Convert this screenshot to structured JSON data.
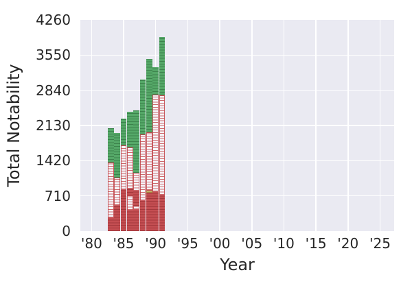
{
  "chart_data": {
    "type": "bar",
    "stacked": true,
    "title": "",
    "xlabel": "Year",
    "ylabel": "Total Notability",
    "grid": true,
    "legend": "none",
    "background": "#eaeaf2",
    "xlim": [
      1978.25,
      2027.2
    ],
    "ylim": [
      0,
      4260
    ],
    "y_ticks": [
      0,
      710,
      1420,
      2130,
      2840,
      3550,
      4260
    ],
    "x_ticks": [
      {
        "year": 1980,
        "label": "'80"
      },
      {
        "year": 1985,
        "label": "'85"
      },
      {
        "year": 1990,
        "label": "'90"
      },
      {
        "year": 1995,
        "label": "'95"
      },
      {
        "year": 2000,
        "label": "'00"
      },
      {
        "year": 2005,
        "label": "'05"
      },
      {
        "year": 2010,
        "label": "'10"
      },
      {
        "year": 2015,
        "label": "'15"
      },
      {
        "year": 2020,
        "label": "'20"
      },
      {
        "year": 2025,
        "label": "'25"
      }
    ],
    "colors": {
      "red": "#c44e52",
      "white": "#f6f5fa",
      "green": "#55a868",
      "yellow": "#ccb974"
    },
    "bars": [
      {
        "year": 1983,
        "total": 2070,
        "segments": [
          {
            "color": "red",
            "from": 0,
            "to": 260
          },
          {
            "color": "white",
            "from": 260,
            "to": 1390
          },
          {
            "color": "green",
            "from": 1390,
            "to": 2070
          }
        ]
      },
      {
        "year": 1984,
        "total": 1980,
        "segments": [
          {
            "color": "red",
            "from": 0,
            "to": 510
          },
          {
            "color": "white",
            "from": 510,
            "to": 1075
          },
          {
            "color": "green",
            "from": 1075,
            "to": 1980
          }
        ]
      },
      {
        "year": 1985,
        "total": 2270,
        "segments": [
          {
            "color": "red",
            "from": 0,
            "to": 825
          },
          {
            "color": "white",
            "from": 825,
            "to": 1730
          },
          {
            "color": "green",
            "from": 1730,
            "to": 2270
          }
        ]
      },
      {
        "year": 1986,
        "total": 2400,
        "segments": [
          {
            "color": "red",
            "from": 0,
            "to": 420
          },
          {
            "color": "white",
            "from": 420,
            "to": 720
          },
          {
            "color": "red",
            "from": 720,
            "to": 845
          },
          {
            "color": "white",
            "from": 845,
            "to": 1690
          },
          {
            "color": "green",
            "from": 1690,
            "to": 2400
          }
        ]
      },
      {
        "year": 1987,
        "total": 2440,
        "segments": [
          {
            "color": "red",
            "from": 0,
            "to": 435
          },
          {
            "color": "white",
            "from": 435,
            "to": 510
          },
          {
            "color": "red",
            "from": 510,
            "to": 800
          },
          {
            "color": "white",
            "from": 800,
            "to": 1180
          },
          {
            "color": "green",
            "from": 1180,
            "to": 2440
          }
        ]
      },
      {
        "year": 1988,
        "total": 3060,
        "segments": [
          {
            "color": "red",
            "from": 0,
            "to": 605
          },
          {
            "color": "white",
            "from": 605,
            "to": 1950
          },
          {
            "color": "green",
            "from": 1950,
            "to": 3060
          }
        ]
      },
      {
        "year": 1989,
        "total": 3470,
        "segments": [
          {
            "color": "red",
            "from": 0,
            "to": 780
          },
          {
            "color": "yellow",
            "from": 780,
            "to": 815
          },
          {
            "color": "white",
            "from": 815,
            "to": 1990
          },
          {
            "color": "green",
            "from": 1990,
            "to": 3470
          }
        ]
      },
      {
        "year": 1990,
        "total": 3300,
        "segments": [
          {
            "color": "red",
            "from": 0,
            "to": 790
          },
          {
            "color": "white",
            "from": 790,
            "to": 2750
          },
          {
            "color": "green",
            "from": 2750,
            "to": 3300
          }
        ]
      },
      {
        "year": 1991,
        "total": 3910,
        "segments": [
          {
            "color": "red",
            "from": 0,
            "to": 720
          },
          {
            "color": "white",
            "from": 720,
            "to": 2735
          },
          {
            "color": "green",
            "from": 2735,
            "to": 3910
          }
        ]
      }
    ]
  }
}
